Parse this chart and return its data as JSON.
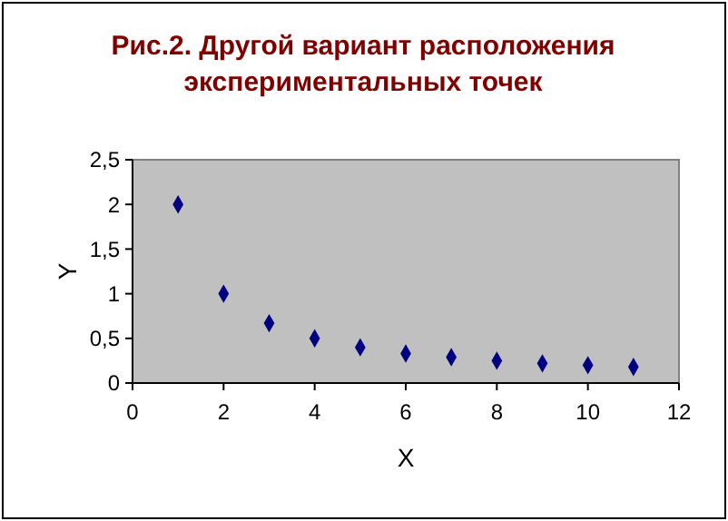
{
  "chart_data": {
    "type": "scatter",
    "title": "Рис.2. Другой вариант расположения\nэкспериментальных точек",
    "xlabel": "X",
    "ylabel": "Y",
    "x": [
      1,
      2,
      3,
      4,
      5,
      6,
      7,
      8,
      9,
      10,
      11
    ],
    "series": [
      {
        "color": "#000080",
        "values": [
          2,
          1,
          0.67,
          0.5,
          0.4,
          0.33,
          0.29,
          0.25,
          0.22,
          0.2,
          0.18
        ]
      }
    ],
    "xlim": [
      0,
      12
    ],
    "xticks": [
      0,
      2,
      4,
      6,
      8,
      10,
      12
    ],
    "ylim": [
      0,
      2.5
    ],
    "yticks": [
      0,
      {
        "value": 0.5,
        "label": "0,5"
      },
      1,
      {
        "value": 1.5,
        "label": "1,5"
      },
      2,
      {
        "value": 2.5,
        "label": "2,5"
      }
    ],
    "grid": false,
    "marker": "diamond"
  }
}
